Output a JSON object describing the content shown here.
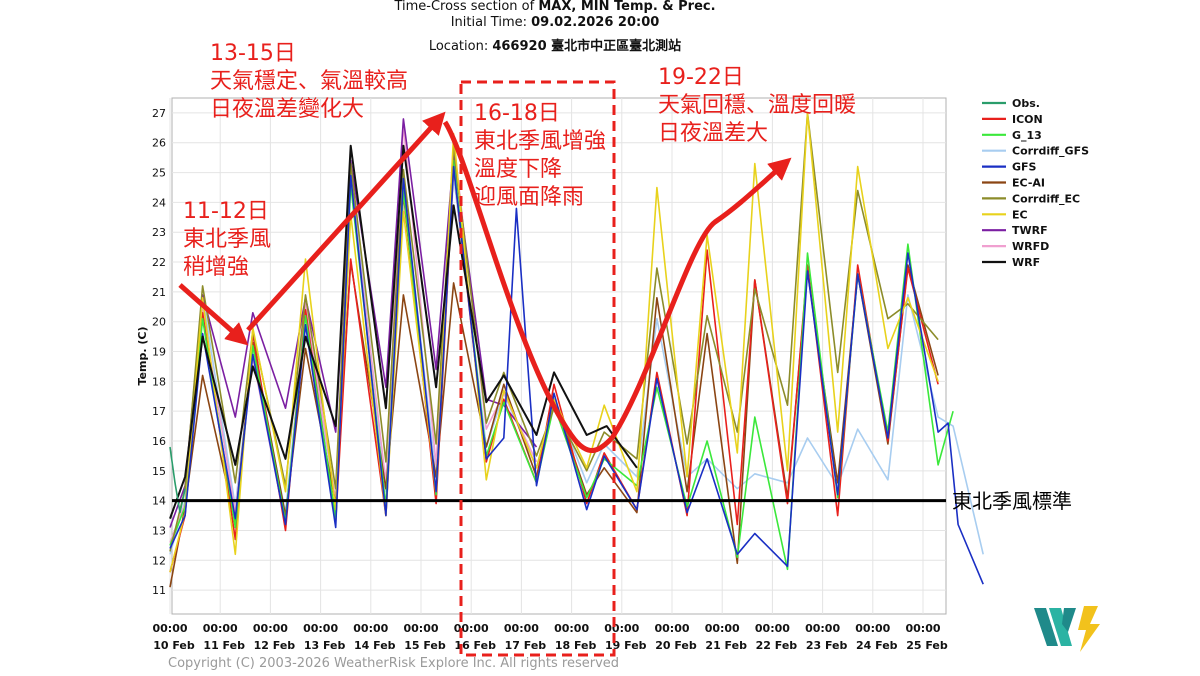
{
  "header": {
    "title_prefix": "Time-Cross section of ",
    "title_bold": "MAX, MIN Temp. & Prec.",
    "init_prefix": "Initial Time: ",
    "init_bold": "09.02.2026 20:00",
    "loc_prefix": "Location: ",
    "loc_bold": "466920 臺北市中正區臺北測站"
  },
  "annotations": {
    "a1": [
      "13-15日",
      "天氣穩定、氣溫較高",
      "日夜溫差變化大"
    ],
    "a2": [
      "11-12日",
      "東北季風",
      "稍增強"
    ],
    "a3": [
      "16-18日",
      "東北季風增強",
      "溫度下降",
      "迎風面降雨"
    ],
    "a4": [
      "19-22日",
      "天氣回穩、溫度回暖",
      "日夜溫差大"
    ],
    "monsoon_label": "東北季風標準"
  },
  "copyright": "Copyright (C) 2003-2026 WeatherRisk Explore Inc. All rights reserved",
  "colors": {
    "Obs.": "#2a9d6b",
    "ICON": "#e8201c",
    "G_13": "#3be83b",
    "Corrdiff_GFS": "#a8cdf0",
    "GFS": "#1a2fc4",
    "EC-AI": "#8b4513",
    "Corrdiff_EC": "#8c8c2a",
    "EC": "#e8d21c",
    "TWRF": "#7b1fa2",
    "WRFD": "#f0a0d0",
    "WRF": "#111111",
    "annotation": "#e8201c",
    "threshold": "#000000"
  },
  "chart_data": {
    "type": "line",
    "title": "Time-Cross section of MAX, MIN Temp. & Prec.",
    "ylabel": "Temp. (C)",
    "ylim": [
      10.2,
      27.5
    ],
    "yticks": [
      11,
      12,
      13,
      14,
      15,
      16,
      17,
      18,
      19,
      20,
      21,
      22,
      23,
      24,
      25,
      26,
      27
    ],
    "xlim": [
      0,
      16.2
    ],
    "xticks": [
      {
        "t": "00:00",
        "d": "10 Feb"
      },
      {
        "t": "00:00",
        "d": "11 Feb"
      },
      {
        "t": "00:00",
        "d": "12 Feb"
      },
      {
        "t": "00:00",
        "d": "13 Feb"
      },
      {
        "t": "00:00",
        "d": "14 Feb"
      },
      {
        "t": "00:00",
        "d": "15 Feb"
      },
      {
        "t": "00:00",
        "d": "16 Feb"
      },
      {
        "t": "00:00",
        "d": "17 Feb"
      },
      {
        "t": "00:00",
        "d": "18 Feb"
      },
      {
        "t": "00:00",
        "d": "19 Feb"
      },
      {
        "t": "00:00",
        "d": "20 Feb"
      },
      {
        "t": "00:00",
        "d": "21 Feb"
      },
      {
        "t": "00:00",
        "d": "22 Feb"
      },
      {
        "t": "00:00",
        "d": "23 Feb"
      },
      {
        "t": "00:00",
        "d": "24 Feb"
      },
      {
        "t": "00:00",
        "d": "25 Feb"
      }
    ],
    "threshold": 14,
    "legend_position": "right",
    "series": [
      {
        "name": "Obs.",
        "x": [
          0,
          0.1,
          0.2,
          0.3
        ],
        "y": [
          15.8,
          14.6,
          13.6,
          14.4
        ]
      },
      {
        "name": "ICON",
        "x": [
          0,
          0.3,
          0.65,
          1.3,
          1.65,
          2.3,
          2.7,
          3.3,
          3.6,
          4.3,
          4.65,
          5.3,
          5.65,
          6.3,
          6.65,
          7.3,
          7.65,
          8.3,
          8.65,
          9.3,
          9.7,
          10.3,
          10.7,
          11.3,
          11.65,
          12.3,
          12.7,
          13.3,
          13.7,
          14.3,
          14.7,
          15.3
        ],
        "y": [
          11.6,
          13.5,
          20.3,
          12.7,
          19.6,
          13,
          20.4,
          13.3,
          22.1,
          13.5,
          24.3,
          13.9,
          25.2,
          15.3,
          17.4,
          14.6,
          17.9,
          13.9,
          15.6,
          13.7,
          18.3,
          13.5,
          22.4,
          13.2,
          21.4,
          13.9,
          21.9,
          13.5,
          21.9,
          16,
          21.8,
          17.9
        ]
      },
      {
        "name": "G_13",
        "x": [
          0,
          0.3,
          0.65,
          1.3,
          1.65,
          2.3,
          2.7,
          3.3,
          3.6,
          4.3,
          4.65,
          5.3,
          5.65,
          6.3,
          6.65,
          7.3,
          7.65,
          8.3,
          8.65,
          9.3,
          9.7,
          10.3,
          10.7,
          11.3,
          11.65,
          12.3,
          12.7,
          13.3,
          13.7,
          14.3,
          14.7,
          15.3,
          15.6
        ],
        "y": [
          12.5,
          13.8,
          20.1,
          13.1,
          19.2,
          13.3,
          20.2,
          13.4,
          24.6,
          13.8,
          24.4,
          14.2,
          25.4,
          15.5,
          17.3,
          14.6,
          17.2,
          14.1,
          15.4,
          14.5,
          17.8,
          13.8,
          16,
          12.1,
          16.8,
          11.7,
          22.3,
          14.1,
          21.6,
          16.3,
          22.6,
          15.2,
          17
        ]
      },
      {
        "name": "Corrdiff_GFS",
        "x": [
          0,
          0.3,
          0.65,
          1.3,
          1.65,
          2.3,
          2.7,
          3.3,
          3.6,
          4.3,
          4.65,
          5.3,
          5.65,
          6.3,
          6.65,
          7.3,
          7.65,
          8.3,
          8.65,
          9.3,
          9.7,
          10.3,
          10.7,
          11.3,
          11.65,
          12.3,
          12.7,
          13.3,
          13.7,
          14.3,
          14.7,
          15.3,
          15.6,
          16.2
        ],
        "y": [
          12.2,
          14,
          20.9,
          13.8,
          19,
          13.6,
          20.3,
          13.9,
          25.2,
          14.3,
          24.5,
          14.8,
          24.9,
          15.8,
          17.6,
          15.1,
          17.4,
          14.6,
          15.9,
          14.8,
          20.1,
          14.8,
          15.4,
          14.4,
          14.9,
          14.6,
          16.1,
          14.5,
          16.4,
          14.7,
          20.9,
          16.8,
          16.5,
          12.2
        ]
      },
      {
        "name": "GFS",
        "x": [
          0,
          0.3,
          0.65,
          1.3,
          1.65,
          2.3,
          2.7,
          3.3,
          3.6,
          4.3,
          4.65,
          5.3,
          5.65,
          6.3,
          6.65,
          6.9,
          7.3,
          7.65,
          8.3,
          8.65,
          9.3,
          9.7,
          10.3,
          10.7,
          11.3,
          11.65,
          12.3,
          12.7,
          13.3,
          13.7,
          14.3,
          14.7,
          15.3,
          15.5,
          15.7,
          16.2
        ],
        "y": [
          12.4,
          13.5,
          19.6,
          13.4,
          18.9,
          13.2,
          19.9,
          13.1,
          24.9,
          13.5,
          24.8,
          14.3,
          25.2,
          15.4,
          16.1,
          23.8,
          14.5,
          17.6,
          13.7,
          15.5,
          13.7,
          18.1,
          13.6,
          15.4,
          12.2,
          12.9,
          11.8,
          21.7,
          14.2,
          21.6,
          16.1,
          22.3,
          16.3,
          16.6,
          13.2,
          11.2
        ]
      },
      {
        "name": "EC-AI",
        "x": [
          0,
          0.3,
          0.65,
          1.3,
          1.65,
          2.3,
          2.7,
          3.3,
          3.6,
          4.3,
          4.65,
          5.3,
          5.65,
          6.3,
          6.65,
          7.3,
          7.65,
          8.3,
          8.65,
          9.3,
          9.7,
          10.3,
          10.7,
          11.3,
          11.65,
          12.3,
          12.7,
          13.3,
          13.7,
          14.3,
          14.7,
          15.3
        ],
        "y": [
          11.1,
          13.8,
          18.2,
          13.3,
          19.3,
          13.5,
          19.1,
          13.9,
          22,
          14.4,
          20.9,
          14.8,
          21.3,
          15.8,
          17.9,
          14.8,
          17.4,
          14.2,
          15.1,
          13.6,
          20.8,
          14.3,
          19.6,
          11.9,
          21.4,
          14.1,
          21.7,
          14.6,
          21.6,
          15.9,
          21.9,
          18.2
        ]
      },
      {
        "name": "Corrdiff_EC",
        "x": [
          0,
          0.3,
          0.65,
          1.3,
          1.65,
          2.3,
          2.7,
          3.3,
          3.6,
          4.3,
          4.65,
          5.3,
          5.65,
          6.3,
          6.65,
          7.3,
          7.65,
          8.3,
          8.65,
          9.3,
          9.7,
          10.3,
          10.7,
          11.3,
          11.65,
          12.3,
          12.7,
          13.3,
          13.7,
          14.3,
          14.7,
          15.3
        ],
        "y": [
          12.3,
          14.4,
          21.2,
          14.6,
          19.7,
          14.5,
          20.9,
          14.4,
          25.3,
          15.3,
          25.1,
          15.9,
          25.9,
          16.6,
          18.3,
          15.5,
          17.1,
          15,
          16.3,
          15.4,
          21.8,
          15.9,
          20.2,
          16.3,
          21.1,
          17.2,
          27,
          18.3,
          24.4,
          20.1,
          20.6,
          19.4
        ]
      },
      {
        "name": "EC",
        "x": [
          0,
          0.3,
          0.65,
          1.3,
          1.65,
          2.3,
          2.7,
          3.3,
          3.6,
          4.3,
          4.65,
          5.3,
          5.65,
          6.3,
          6.65,
          7.3,
          7.65,
          8.3,
          8.65,
          9.3,
          9.7,
          10.3,
          10.7,
          11.3,
          11.65,
          12.3,
          12.7,
          13.3,
          13.7,
          14.3,
          14.7,
          15.3
        ],
        "y": [
          11.6,
          13.6,
          20.8,
          12.2,
          19.8,
          14.3,
          22.1,
          13.7,
          23.6,
          13.5,
          23.7,
          14.3,
          26.3,
          14.7,
          17.7,
          15.1,
          17.4,
          15.1,
          17.2,
          14.3,
          24.5,
          14.8,
          22.9,
          15.6,
          25.3,
          15,
          27,
          16.3,
          25.2,
          19.1,
          20.8,
          18
        ]
      },
      {
        "name": "TWRF",
        "x": [
          0,
          0.3,
          0.65,
          1.3,
          1.65,
          2.3,
          2.7,
          3.3,
          3.6,
          4.3,
          4.65,
          5.3,
          5.65,
          6.3,
          6.65,
          7.3
        ],
        "y": [
          13.1,
          14.5,
          20.9,
          16.8,
          20.3,
          17.1,
          20.8,
          16.3,
          25.4,
          17.8,
          26.8,
          18.4,
          25.6,
          17.4,
          17.2,
          15.8
        ]
      },
      {
        "name": "WRFD",
        "x": [
          0,
          0.3,
          0.65,
          1.3,
          1.65,
          2.3,
          2.7,
          3.3,
          3.6,
          4.3,
          4.65,
          5.3,
          5.65,
          6.3,
          6.65,
          7.3
        ],
        "y": [
          12.6,
          13.9,
          20.4,
          13.6,
          18.8,
          13.2,
          20.6,
          14,
          24.7,
          14.6,
          26.6,
          15.2,
          26.1,
          16.4,
          17.6,
          15.3
        ]
      },
      {
        "name": "WRF",
        "x": [
          0,
          0.3,
          0.65,
          1.3,
          1.65,
          2.3,
          2.7,
          3.3,
          3.6,
          4.3,
          4.65,
          5.3,
          5.65,
          6.3,
          6.65,
          7.3,
          7.65,
          8.3,
          8.7,
          9.3
        ],
        "y": [
          13.4,
          14.8,
          19.5,
          15.2,
          18.5,
          15.4,
          19.5,
          16.5,
          25.9,
          17.1,
          25.9,
          17.8,
          23.9,
          17.3,
          18.2,
          16.2,
          18.3,
          16.2,
          16.5,
          15.1
        ]
      }
    ]
  }
}
